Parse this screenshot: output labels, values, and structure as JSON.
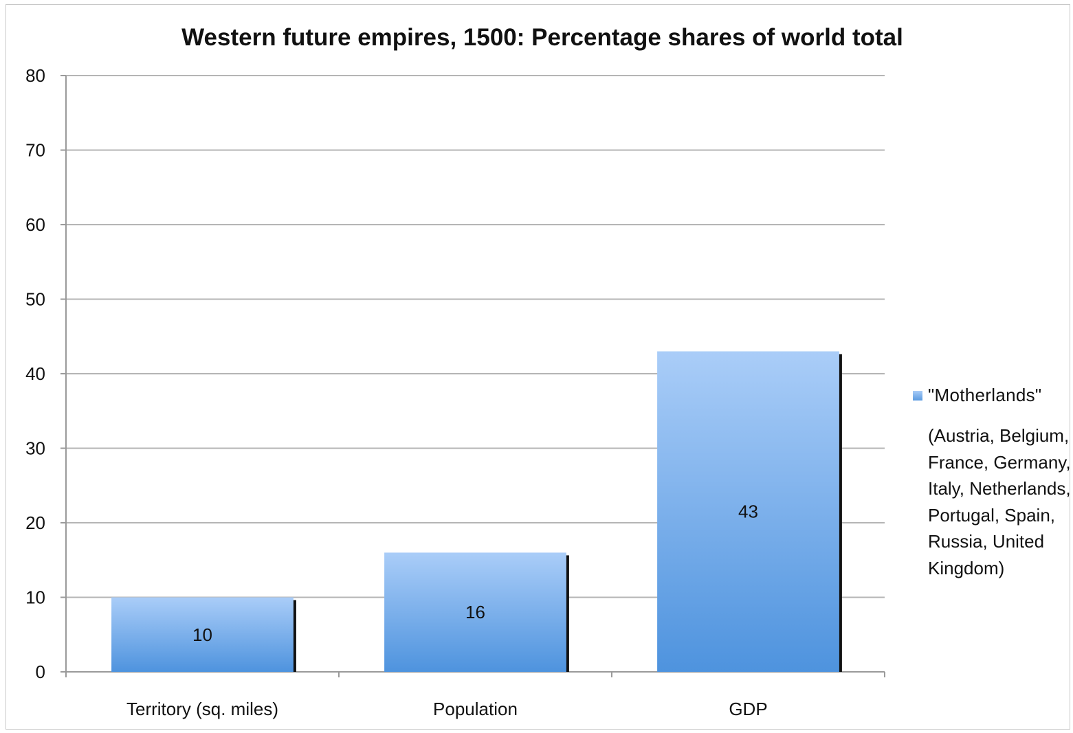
{
  "chart_data": {
    "type": "bar",
    "title": "Western future empires, 1500: Percentage shares of world total",
    "xlabel": "",
    "ylabel": "",
    "categories": [
      "Territory (sq. miles)",
      "Population",
      "GDP"
    ],
    "series": [
      {
        "name": "\"Motherlands\"",
        "values": [
          10,
          16,
          43
        ],
        "color": "#5a9ae0"
      }
    ],
    "data_labels": [
      "10",
      "16",
      "43"
    ],
    "ylim": [
      0,
      80
    ],
    "yticks": [
      0,
      10,
      20,
      30,
      40,
      50,
      60,
      70,
      80
    ],
    "grid": true,
    "legend_position": "right"
  },
  "legend": {
    "name": "\"Motherlands\"",
    "note": "(Austria, Belgium, France, Germany, Italy, Netherlands, Portugal, Spain, Russia, United Kingdom)"
  },
  "colors": {
    "bar_top": "#aacdf8",
    "bar_bottom": "#4e93de",
    "grid": "#b5b5b5",
    "axis": "#9a9a9a",
    "bar_shadow": "#111111"
  }
}
